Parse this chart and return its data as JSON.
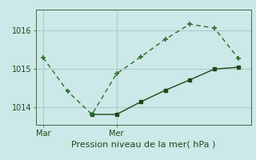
{
  "background_color": "#cce8e8",
  "grid_color": "#aacccc",
  "line1_x": [
    0,
    1,
    2,
    3,
    4,
    5,
    6,
    7,
    8
  ],
  "line1_y": [
    1015.3,
    1014.42,
    1013.82,
    1014.88,
    1015.32,
    1015.78,
    1016.17,
    1016.07,
    1015.27
  ],
  "line2_x": [
    2,
    3,
    4,
    5,
    6,
    7,
    8
  ],
  "line2_y": [
    1013.82,
    1013.82,
    1014.15,
    1014.45,
    1014.72,
    1015.0,
    1015.05
  ],
  "line1_color": "#2a6e2a",
  "line2_color": "#1a4a1a",
  "xtick_positions": [
    0,
    3
  ],
  "xtick_labels": [
    "Mar",
    "Mer"
  ],
  "ytick_positions": [
    1014,
    1015,
    1016
  ],
  "ytick_labels": [
    "1014",
    "1015",
    "1016"
  ],
  "ylim": [
    1013.55,
    1016.55
  ],
  "xlim": [
    -0.3,
    8.5
  ],
  "xlabel": "Pression niveau de la mer( hPa )",
  "xlabel_color": "#1a4a1a",
  "xlabel_fontsize": 8,
  "tick_fontsize": 7
}
